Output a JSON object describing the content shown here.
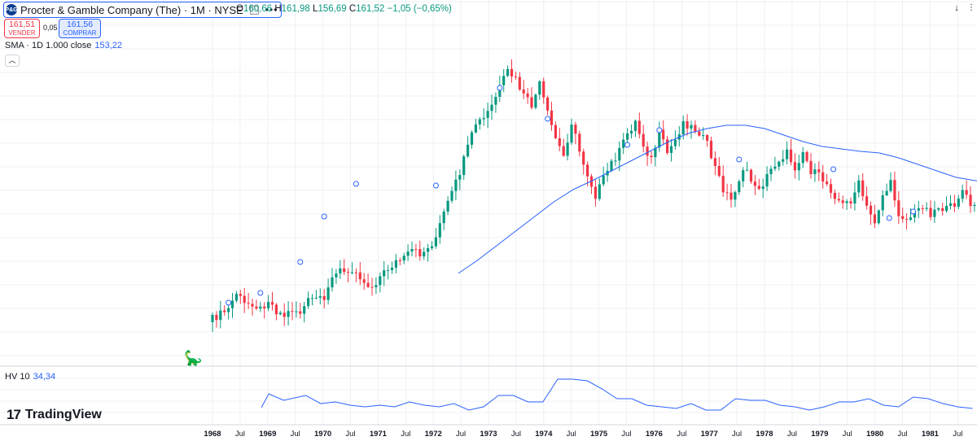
{
  "header": {
    "logo_text": "P&G",
    "symbol": "Procter & Gamble Company (The) · 1M · NYSE",
    "more_icon": "more-dots-icon",
    "ohlc": {
      "o_label": "O",
      "o": "160,66",
      "h_label": "H",
      "h": "161,98",
      "l_label": "L",
      "l": "156,69",
      "c_label": "C",
      "c": "161,52",
      "change": "−1,05 (−0,65%)"
    }
  },
  "trade": {
    "sell_price": "161,51",
    "sell_label": "VENDER",
    "spread": "0,05",
    "buy_price": "161,56",
    "buy_label": "COMPRAR"
  },
  "indicators": {
    "sma_label": "SMA · 1D 1.000 close",
    "sma_value": "153,22",
    "hv_label": "HV 10",
    "hv_value": "34,34"
  },
  "branding": {
    "name": "TradingView"
  },
  "icons": {
    "right_top": [
      "arrow-down-icon",
      "maximize-icon",
      "close-icon"
    ]
  },
  "colors": {
    "up": "#089981",
    "down": "#f23645",
    "sma": "#2962ff",
    "hv": "#2962ff",
    "grid": "#eef0f3"
  },
  "chart_data": {
    "type": "candlestick",
    "interval": "1M",
    "x_tick_labels": [
      "1968",
      "Jul",
      "1969",
      "Jul",
      "1970",
      "Jul",
      "1971",
      "Jul",
      "1972",
      "Jul",
      "1973",
      "Jul",
      "1974",
      "Jul",
      "1975",
      "Jul",
      "1976",
      "Jul",
      "1977",
      "Jul",
      "1978",
      "Jul",
      "1979",
      "Jul",
      "1980",
      "Jul",
      "1981",
      "Jul"
    ],
    "x_range": [
      "1968-01",
      "1981-12"
    ],
    "grid": true,
    "candle_close_path": [
      [
        0,
        392
      ],
      [
        2,
        386
      ],
      [
        4,
        380
      ],
      [
        6,
        360
      ],
      [
        8,
        374
      ],
      [
        10,
        372
      ],
      [
        12,
        380
      ],
      [
        14,
        368
      ],
      [
        16,
        382
      ],
      [
        18,
        388
      ],
      [
        20,
        380
      ],
      [
        22,
        384
      ],
      [
        24,
        370
      ],
      [
        26,
        366
      ],
      [
        28,
        372
      ],
      [
        30,
        336
      ],
      [
        32,
        332
      ],
      [
        34,
        338
      ],
      [
        36,
        330
      ],
      [
        38,
        348
      ],
      [
        40,
        352
      ],
      [
        42,
        340
      ],
      [
        44,
        330
      ],
      [
        46,
        322
      ],
      [
        48,
        318
      ],
      [
        50,
        308
      ],
      [
        52,
        312
      ],
      [
        54,
        306
      ],
      [
        56,
        292
      ],
      [
        58,
        262
      ],
      [
        60,
        238
      ],
      [
        62,
        212
      ],
      [
        64,
        182
      ],
      [
        66,
        152
      ],
      [
        68,
        146
      ],
      [
        70,
        130
      ],
      [
        72,
        108
      ],
      [
        74,
        88
      ],
      [
        76,
        98
      ],
      [
        78,
        118
      ],
      [
        80,
        130
      ],
      [
        82,
        104
      ],
      [
        84,
        140
      ],
      [
        86,
        170
      ],
      [
        88,
        192
      ],
      [
        90,
        150
      ],
      [
        92,
        186
      ],
      [
        94,
        214
      ],
      [
        96,
        240
      ],
      [
        98,
        220
      ],
      [
        100,
        200
      ],
      [
        102,
        186
      ],
      [
        104,
        164
      ],
      [
        106,
        150
      ],
      [
        108,
        178
      ],
      [
        110,
        196
      ],
      [
        112,
        164
      ],
      [
        114,
        188
      ],
      [
        116,
        172
      ],
      [
        118,
        150
      ],
      [
        120,
        156
      ],
      [
        122,
        162
      ],
      [
        124,
        178
      ],
      [
        126,
        206
      ],
      [
        128,
        232
      ],
      [
        130,
        246
      ],
      [
        132,
        220
      ],
      [
        134,
        208
      ],
      [
        136,
        232
      ],
      [
        138,
        226
      ],
      [
        140,
        208
      ],
      [
        142,
        196
      ],
      [
        144,
        188
      ],
      [
        146,
        206
      ],
      [
        148,
        186
      ],
      [
        150,
        210
      ],
      [
        152,
        216
      ],
      [
        154,
        226
      ],
      [
        156,
        240
      ],
      [
        158,
        252
      ],
      [
        160,
        246
      ],
      [
        162,
        226
      ],
      [
        164,
        256
      ],
      [
        166,
        272
      ],
      [
        168,
        240
      ],
      [
        170,
        226
      ],
      [
        172,
        262
      ],
      [
        174,
        270
      ],
      [
        176,
        262
      ],
      [
        178,
        252
      ],
      [
        180,
        262
      ],
      [
        182,
        254
      ],
      [
        184,
        258
      ],
      [
        186,
        250
      ],
      [
        188,
        234
      ],
      [
        190,
        252
      ],
      [
        192,
        258
      ],
      [
        194,
        232
      ]
    ],
    "sma_points": [
      [
        28,
        336
      ],
      [
        32,
        320
      ],
      [
        36,
        302
      ],
      [
        40,
        284
      ],
      [
        44,
        266
      ],
      [
        48,
        248
      ],
      [
        52,
        233
      ],
      [
        56,
        222
      ],
      [
        60,
        210
      ],
      [
        64,
        198
      ],
      [
        68,
        186
      ],
      [
        72,
        174
      ],
      [
        76,
        164
      ],
      [
        80,
        158
      ],
      [
        84,
        154
      ],
      [
        88,
        154
      ],
      [
        92,
        158
      ],
      [
        96,
        166
      ],
      [
        100,
        174
      ],
      [
        104,
        180
      ],
      [
        108,
        183
      ],
      [
        112,
        186
      ],
      [
        116,
        188
      ],
      [
        120,
        194
      ],
      [
        124,
        202
      ],
      [
        128,
        210
      ],
      [
        132,
        218
      ],
      [
        136,
        222
      ],
      [
        140,
        226
      ],
      [
        144,
        230
      ],
      [
        148,
        232
      ],
      [
        152,
        234
      ]
    ],
    "hv_points": [
      [
        0,
        501
      ],
      [
        1,
        484
      ],
      [
        3,
        492
      ],
      [
        6,
        486
      ],
      [
        8,
        496
      ],
      [
        10,
        494
      ],
      [
        12,
        498
      ],
      [
        14,
        500
      ],
      [
        16,
        498
      ],
      [
        18,
        500
      ],
      [
        20,
        494
      ],
      [
        22,
        498
      ],
      [
        24,
        500
      ],
      [
        26,
        496
      ],
      [
        28,
        504
      ],
      [
        30,
        500
      ],
      [
        32,
        486
      ],
      [
        34,
        486
      ],
      [
        36,
        494
      ],
      [
        38,
        494
      ],
      [
        40,
        466
      ],
      [
        42,
        466
      ],
      [
        44,
        468
      ],
      [
        46,
        478
      ],
      [
        48,
        490
      ],
      [
        50,
        490
      ],
      [
        52,
        498
      ],
      [
        54,
        500
      ],
      [
        56,
        502
      ],
      [
        58,
        496
      ],
      [
        60,
        504
      ],
      [
        62,
        504
      ],
      [
        64,
        490
      ],
      [
        66,
        492
      ],
      [
        68,
        492
      ],
      [
        70,
        498
      ],
      [
        72,
        500
      ],
      [
        74,
        504
      ],
      [
        76,
        500
      ],
      [
        78,
        494
      ],
      [
        80,
        494
      ],
      [
        82,
        490
      ],
      [
        84,
        498
      ],
      [
        86,
        500
      ],
      [
        88,
        488
      ],
      [
        90,
        490
      ],
      [
        92,
        496
      ],
      [
        94,
        500
      ],
      [
        96,
        502
      ]
    ]
  }
}
